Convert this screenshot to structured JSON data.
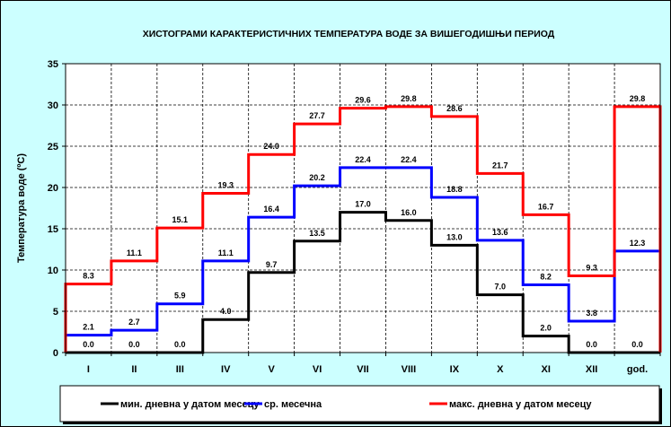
{
  "chart_data": {
    "type": "line",
    "step": true,
    "title": "ХИСТОГРАМИ КАРАКТЕРИСТИЧНИХ ТЕМПЕРАТУРА ВОДЕ ЗА ВИШЕГОДИШЊИ ПЕРИОД",
    "xlabel": "",
    "ylabel": "Температура воде (ºC)",
    "ylim": [
      0,
      35
    ],
    "yticks": [
      "0",
      "5",
      "10",
      "15",
      "20",
      "25",
      "30",
      "35"
    ],
    "grid": true,
    "legend_position": "bottom",
    "categories": [
      "I",
      "II",
      "III",
      "IV",
      "V",
      "VI",
      "VII",
      "VIII",
      "IX",
      "X",
      "XI",
      "XII",
      "god."
    ],
    "series": [
      {
        "name": "мин. дневна у датом месецу",
        "color": "#000000",
        "values": [
          0.0,
          0.0,
          0.0,
          4.0,
          9.7,
          13.5,
          17.0,
          16.0,
          13.0,
          7.0,
          2.0,
          0.0,
          0.0
        ]
      },
      {
        "name": "ср. месечна",
        "color": "#0000ff",
        "values": [
          2.1,
          2.7,
          5.9,
          11.1,
          16.4,
          20.2,
          22.4,
          22.4,
          18.8,
          13.6,
          8.2,
          3.8,
          12.3
        ]
      },
      {
        "name": "макс. дневна у датом месецу",
        "color": "#ff0000",
        "values": [
          8.3,
          11.1,
          15.1,
          19.3,
          24.0,
          27.7,
          29.6,
          29.8,
          28.6,
          21.7,
          16.7,
          9.3,
          29.8
        ]
      }
    ]
  }
}
